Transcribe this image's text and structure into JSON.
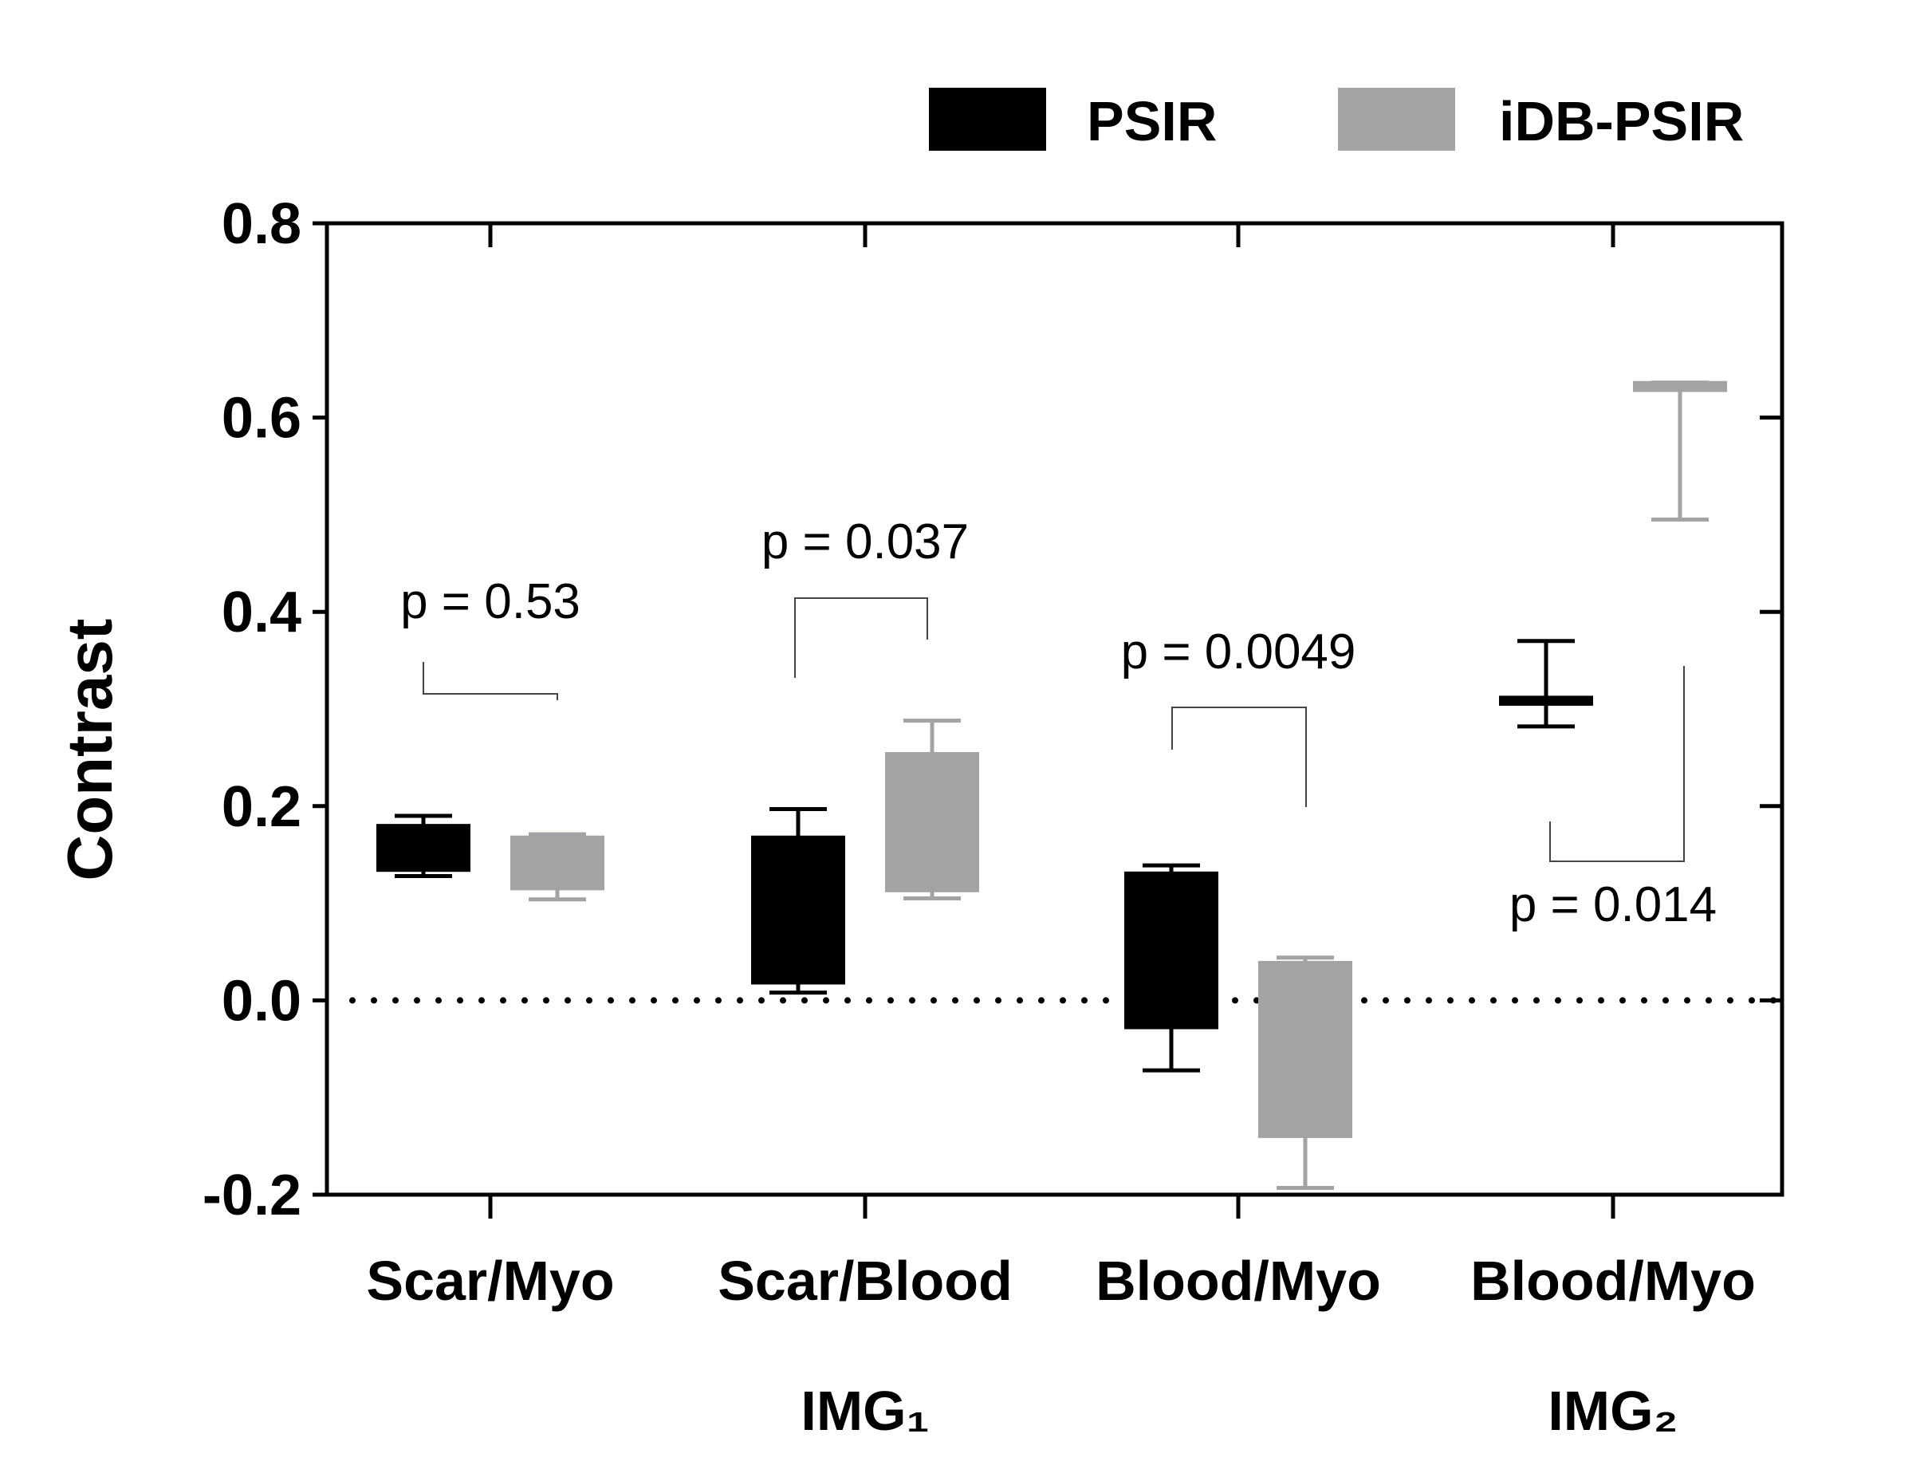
{
  "chart_data": {
    "type": "box",
    "title": "",
    "xlabel": "",
    "ylabel": "Contrast",
    "ylim": [
      -0.2,
      0.8
    ],
    "yticks": [
      "0.8",
      "0.6",
      "0.4",
      "0.2",
      "0.0",
      "-0.2"
    ],
    "ytick_values": [
      0.8,
      0.6,
      0.4,
      0.2,
      0.0,
      -0.2
    ],
    "categories": [
      "Scar/Myo",
      "Scar/Blood",
      "Blood/Myo",
      "Blood/Myo"
    ],
    "group_labels": [
      {
        "label": "IMG₁",
        "category_index": 1
      },
      {
        "label": "IMG₂",
        "category_index": 3
      }
    ],
    "reference_line": 0.0,
    "legend": {
      "position": "top-right",
      "entries": [
        "PSIR",
        "iDB-PSIR"
      ]
    },
    "colors": {
      "PSIR": "#000000",
      "iDB-PSIR": "#a3a3a6"
    },
    "series": [
      {
        "name": "PSIR",
        "boxes": [
          {
            "whisker_low": 0.128,
            "q1": 0.134,
            "q3": 0.18,
            "whisker_high": 0.19
          },
          {
            "whisker_low": 0.008,
            "q1": 0.018,
            "q3": 0.168,
            "whisker_high": 0.197
          },
          {
            "whisker_low": -0.072,
            "q1": -0.028,
            "q3": 0.131,
            "whisker_high": 0.139
          },
          {
            "whisker_low": 0.282,
            "q1": 0.305,
            "q3": 0.312,
            "whisker_high": 0.37
          }
        ]
      },
      {
        "name": "iDB-PSIR",
        "boxes": [
          {
            "whisker_low": 0.104,
            "q1": 0.115,
            "q3": 0.168,
            "whisker_high": 0.171
          },
          {
            "whisker_low": 0.105,
            "q1": 0.113,
            "q3": 0.254,
            "whisker_high": 0.288
          },
          {
            "whisker_low": -0.193,
            "q1": -0.14,
            "q3": 0.039,
            "whisker_high": 0.044
          },
          {
            "whisker_low": 0.495,
            "q1": 0.628,
            "q3": 0.636,
            "whisker_high": 0.636
          }
        ]
      }
    ],
    "annotations": [
      {
        "text": "p = 0.53",
        "category_index": 0
      },
      {
        "text": "p = 0.037",
        "category_index": 1
      },
      {
        "text": "p = 0.0049",
        "category_index": 2
      },
      {
        "text": "p = 0.014",
        "category_index": 3
      }
    ]
  }
}
